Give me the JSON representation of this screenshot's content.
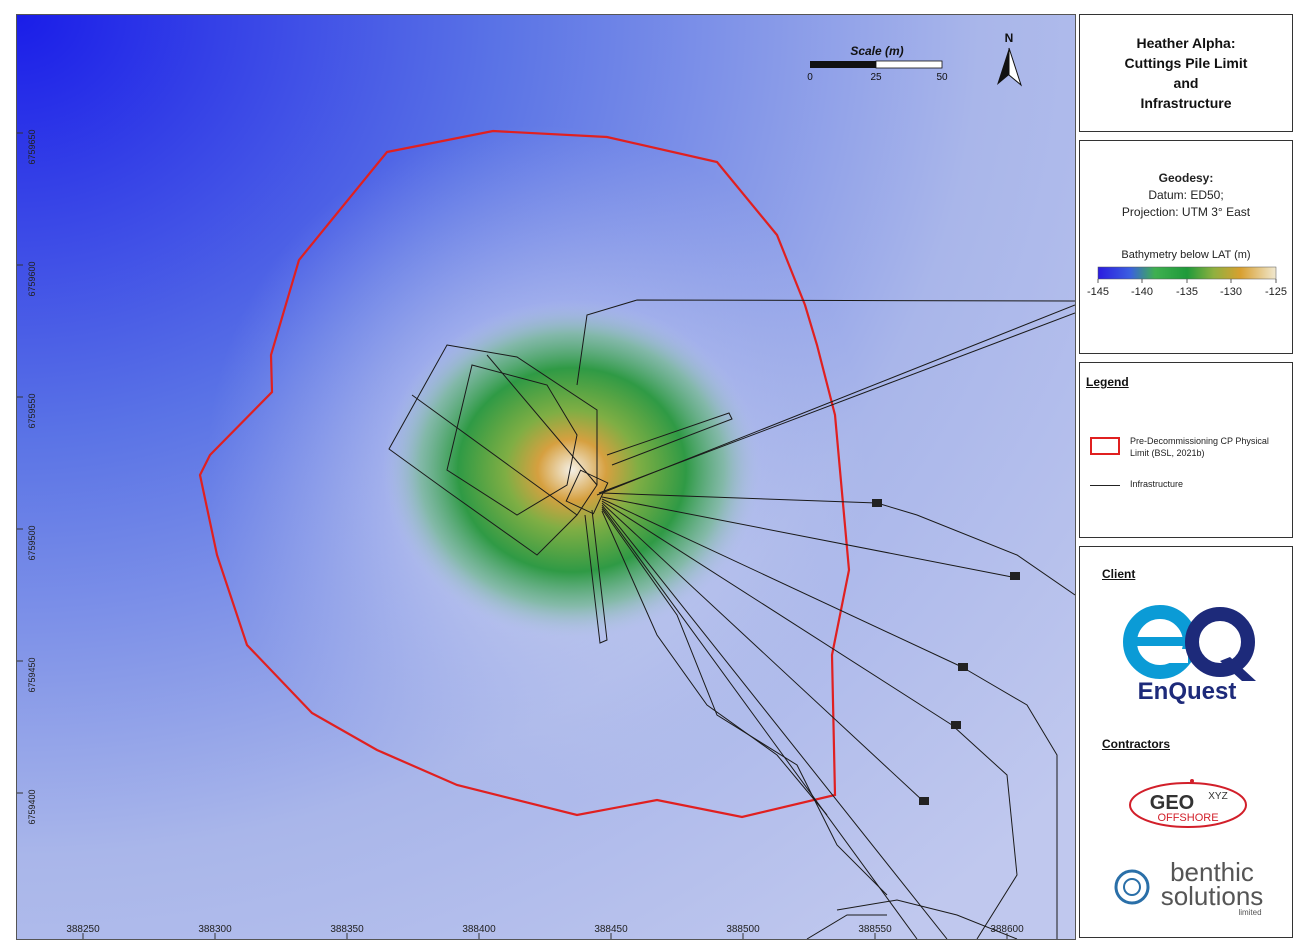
{
  "title": "Heather Alpha:\nCuttings Pile Limit\nand\nInfrastructure",
  "geodesy": {
    "heading": "Geodesy:",
    "datum": "Datum: ED50;",
    "projection": "Projection: UTM 3° East",
    "bathymetry_label": "Bathymetry below LAT (m)",
    "ticks": [
      "-145",
      "-140",
      "-135",
      "-130",
      "-125"
    ],
    "colors": [
      "#2a1be0",
      "#3b5fe0",
      "#3fb050",
      "#1f9a3a",
      "#8fb040",
      "#d8a030",
      "#f0e8d0"
    ]
  },
  "legend": {
    "heading": "Legend",
    "items": [
      {
        "label": "Pre-Decommissioning CP Physical Limit (BSL, 2021b)",
        "color": "#e02020",
        "kind": "box"
      },
      {
        "label": "Infrastructure",
        "color": "#222222",
        "kind": "line"
      }
    ]
  },
  "client": {
    "heading": "Client",
    "logo_text": "EnQuest",
    "contractors_heading": "Contractors",
    "contractor1_main": "GEO",
    "contractor1_sup": "XYZ",
    "contractor1_sub": "OFFSHORE",
    "contractor2_main": "benthic",
    "contractor2_line2": "solutions",
    "contractor2_sub": "limited"
  },
  "map": {
    "scale_title": "Scale (m)",
    "scale_ticks": [
      "0",
      "25",
      "50"
    ],
    "north": "N",
    "x_ticks": [
      "388250",
      "388300",
      "388350",
      "388400",
      "388450",
      "388500",
      "388550",
      "388600"
    ],
    "y_ticks": [
      "6759650",
      "6759600",
      "6759550",
      "6759500",
      "6759450",
      "6759400"
    ],
    "limit_color": "#e02020"
  }
}
